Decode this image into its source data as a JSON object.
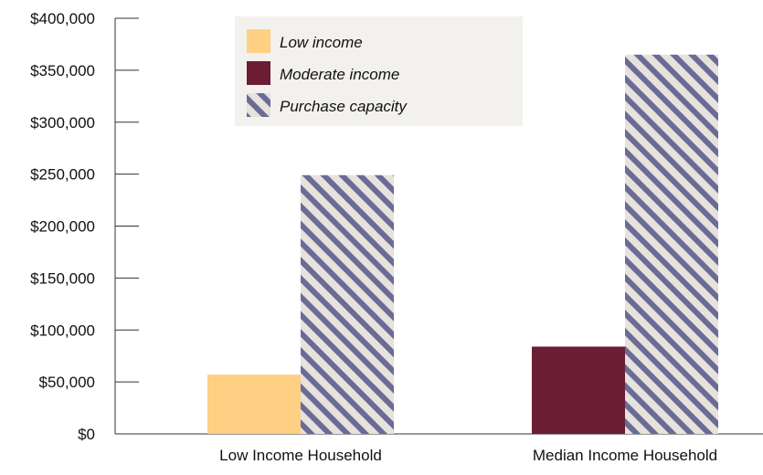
{
  "chart_data": {
    "type": "bar",
    "categories": [
      "Low Income Household",
      "Median Income Household"
    ],
    "series": [
      {
        "name": "Low income",
        "values": [
          57000,
          null
        ],
        "color": "#FFCF83",
        "pattern": "solid"
      },
      {
        "name": "Moderate income",
        "values": [
          null,
          84000
        ],
        "color": "#6A1D33",
        "pattern": "solid"
      },
      {
        "name": "Purchase capacity",
        "values": [
          249000,
          365000
        ],
        "color": "#6A6B96",
        "pattern": "diagonal-stripes",
        "stripe_bg": "#E6E2DC"
      }
    ],
    "y_ticks": [
      "$0",
      "$50,000",
      "$100,000",
      "$150,000",
      "$200,000",
      "$250,000",
      "$300,000",
      "$350,000",
      "$400,000"
    ],
    "ylim": [
      0,
      400000
    ],
    "grid": false,
    "legend_position": "top-center",
    "legend_background": "#F3F1EE",
    "axis_color": "#333333"
  }
}
